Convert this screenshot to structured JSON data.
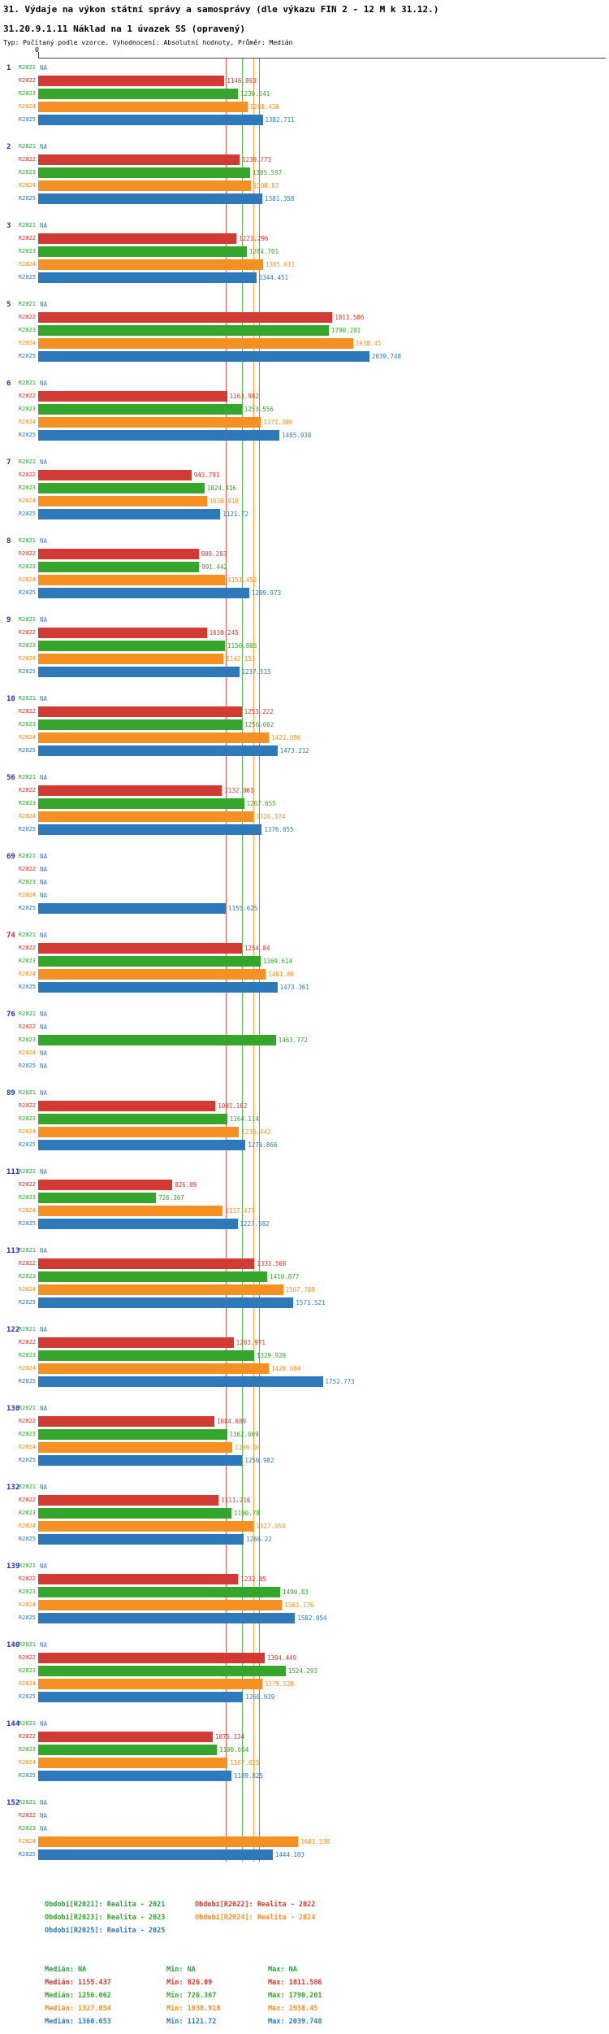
{
  "header": {
    "title": "31. Výdaje na výkon státní správy a samosprávy (dle výkazu FIN 2 - 12 M k 31.12.)",
    "subtitle": "31.20.9.1.11 Náklad na 1 úvazek SS (opravený)",
    "type_line": "Typ: Počítaný podle vzorce. Vyhodnocení: Absolutní hodnoty, Průměr: Medián"
  },
  "colors": {
    "na_text": "#4a7ab5",
    "group_id": "#2233bb",
    "group_id_highlight": "#cc2222",
    "axis": "#444444"
  },
  "chart_data": {
    "type": "bar",
    "orientation": "horizontal",
    "value_axis": {
      "origin_label": "0",
      "min": 0
    },
    "row_keys": [
      "R2021",
      "R2022",
      "R2023",
      "R2024",
      "R2025"
    ],
    "series": [
      {
        "key": "R2021",
        "name": "Realita - 2021",
        "legend": "Období[R2021]: Realita - 2021",
        "color": "#2d9e41",
        "median": null,
        "min": null,
        "max": null,
        "median_label": "Medián: NA",
        "min_label": "Min: NA",
        "max_label": "Max: NA"
      },
      {
        "key": "R2022",
        "name": "Realita - 2022",
        "legend": "Období[R2022]: Realita - 2022",
        "color": "#d23b33",
        "median": 1155.437,
        "min": 826.09,
        "max": 1811.586,
        "median_label": "Medián: 1155.437",
        "min_label": "Min: 826.09",
        "max_label": "Max: 1811.586"
      },
      {
        "key": "R2023",
        "name": "Realita - 2023",
        "legend": "Období[R2023]: Realita - 2023",
        "color": "#35a52c",
        "median": 1256.062,
        "min": 726.367,
        "max": 1790.201,
        "median_label": "Medián: 1256.062",
        "min_label": "Min: 726.367",
        "max_label": "Max: 1790.201"
      },
      {
        "key": "R2024",
        "name": "Realita - 2024",
        "legend": "Období[R2024]: Realita - 2024",
        "color": "#f59122",
        "median": 1327.054,
        "min": 1038.918,
        "max": 1938.45,
        "median_label": "Medián: 1327.054",
        "min_label": "Min: 1038.918",
        "max_label": "Max: 1938.45"
      },
      {
        "key": "R2025",
        "name": "Realita - 2025",
        "legend": "Období[R2025]: Realita - 2025",
        "color": "#2e79b9",
        "median": 1360.653,
        "min": 1121.72,
        "max": 2039.748,
        "median_label": "Medián: 1360.653",
        "min_label": "Min: 1121.72",
        "max_label": "Max: 2039.748"
      }
    ],
    "groups": [
      {
        "id": "1",
        "highlight": false,
        "values": [
          null,
          1146.893,
          1230.541,
          1288.436,
          1382.711
        ],
        "labels": [
          "NA",
          "1146.893",
          "1230.541",
          "1288.436",
          "1382.711"
        ]
      },
      {
        "id": "2",
        "highlight": false,
        "values": [
          null,
          1239.773,
          1305.597,
          1308.87,
          1381.358
        ],
        "labels": [
          "NA",
          "1239.773",
          "1305.597",
          "1308.87",
          "1381.358"
        ]
      },
      {
        "id": "3",
        "highlight": false,
        "values": [
          null,
          1221.296,
          1284.701,
          1385.011,
          1344.451
        ],
        "labels": [
          "NA",
          "1221.296",
          "1284.701",
          "1385.011",
          "1344.451"
        ]
      },
      {
        "id": "5",
        "highlight": false,
        "values": [
          null,
          1811.586,
          1790.201,
          1938.45,
          2039.748
        ],
        "labels": [
          "NA",
          "1811.586",
          "1790.201",
          "1938.45",
          "2039.748"
        ]
      },
      {
        "id": "6",
        "highlight": false,
        "values": [
          null,
          1163.982,
          1253.556,
          1371.306,
          1485.938
        ],
        "labels": [
          "NA",
          "1163.982",
          "1253.556",
          "1371.306",
          "1485.938"
        ]
      },
      {
        "id": "7",
        "highlight": false,
        "values": [
          null,
          943.791,
          1024.416,
          1038.918,
          1121.72
        ],
        "labels": [
          "NA",
          "943.791",
          "1024.416",
          "1038.918",
          "1121.72"
        ]
      },
      {
        "id": "8",
        "highlight": false,
        "values": [
          null,
          988.203,
          991.442,
          1151.452,
          1299.973
        ],
        "labels": [
          "NA",
          "988.203",
          "991.442",
          "1151.452",
          "1299.973"
        ]
      },
      {
        "id": "9",
        "highlight": false,
        "values": [
          null,
          1038.245,
          1150.805,
          1142.151,
          1237.515
        ],
        "labels": [
          "NA",
          "1038.245",
          "1150.805",
          "1142.151",
          "1237.515"
        ]
      },
      {
        "id": "10",
        "highlight": false,
        "values": [
          null,
          1253.222,
          1256.062,
          1421.056,
          1473.212
        ],
        "labels": [
          "NA",
          "1253.222",
          "1256.062",
          "1421.056",
          "1473.212"
        ]
      },
      {
        "id": "56",
        "highlight": false,
        "values": [
          null,
          1132.061,
          1267.655,
          1326.174,
          1376.855
        ],
        "labels": [
          "NA",
          "1132.061",
          "1267.655",
          "1326.174",
          "1376.855"
        ]
      },
      {
        "id": "69",
        "highlight": false,
        "values": [
          null,
          null,
          null,
          null,
          1155.625
        ],
        "labels": [
          "NA",
          "NA",
          "NA",
          "NA",
          "1155.625"
        ]
      },
      {
        "id": "74",
        "highlight": true,
        "values": [
          null,
          1254.84,
          1369.614,
          1401.86,
          1473.361
        ],
        "labels": [
          "NA",
          "1254.84",
          "1369.614",
          "1401.86",
          "1473.361"
        ]
      },
      {
        "id": "76",
        "highlight": false,
        "values": [
          null,
          null,
          1463.772,
          null,
          null
        ],
        "labels": [
          "NA",
          "NA",
          "1463.772",
          "NA",
          "NA"
        ]
      },
      {
        "id": "89",
        "highlight": false,
        "values": [
          null,
          1091.162,
          1164.114,
          1236.442,
          1276.866
        ],
        "labels": [
          "NA",
          "1091.162",
          "1164.114",
          "1236.442",
          "1276.866"
        ]
      },
      {
        "id": "111",
        "highlight": false,
        "values": [
          null,
          826.09,
          726.367,
          1137.477,
          1227.582
        ],
        "labels": [
          "NA",
          "826.09",
          "726.367",
          "1137.477",
          "1227.582"
        ]
      },
      {
        "id": "113",
        "highlight": false,
        "values": [
          null,
          1331.568,
          1410.877,
          1507.788,
          1571.521
        ],
        "labels": [
          "NA",
          "1331.568",
          "1410.877",
          "1507.788",
          "1571.521"
        ]
      },
      {
        "id": "122",
        "highlight": false,
        "values": [
          null,
          1203.971,
          1329.928,
          1420.684,
          1752.773
        ],
        "labels": [
          "NA",
          "1203.971",
          "1329.928",
          "1420.684",
          "1752.773"
        ]
      },
      {
        "id": "130",
        "highlight": false,
        "values": [
          null,
          1084.689,
          1162.609,
          1196.0,
          1256.982
        ],
        "labels": [
          "NA",
          "1084.689",
          "1162.609",
          "1196.00",
          "1256.982"
        ]
      },
      {
        "id": "132",
        "highlight": false,
        "values": [
          null,
          1111.216,
          1190.78,
          1327.054,
          1266.22
        ],
        "labels": [
          "NA",
          "1111.216",
          "1190.78",
          "1327.054",
          "1266.22"
        ]
      },
      {
        "id": "139",
        "highlight": false,
        "values": [
          null,
          1232.05,
          1490.83,
          1501.176,
          1582.054
        ],
        "labels": [
          "NA",
          "1232.05",
          "1490.83",
          "1501.176",
          "1582.054"
        ]
      },
      {
        "id": "140",
        "highlight": false,
        "values": [
          null,
          1394.449,
          1524.293,
          1379.528,
          1260.939
        ],
        "labels": [
          "NA",
          "1394.449",
          "1524.293",
          "1379.528",
          "1260.939"
        ]
      },
      {
        "id": "144",
        "highlight": false,
        "values": [
          null,
          1075.134,
          1100.604,
          1167.025,
          1189.825
        ],
        "labels": [
          "NA",
          "1075.134",
          "1100.604",
          "1167.025",
          "1189.825"
        ]
      },
      {
        "id": "152",
        "highlight": false,
        "values": [
          null,
          null,
          null,
          1601.538,
          1444.103
        ],
        "labels": [
          "NA",
          "NA",
          "NA",
          "1601.538",
          "1444.103"
        ]
      }
    ],
    "legend_position": "bottom",
    "grid": "median-reference-lines"
  }
}
